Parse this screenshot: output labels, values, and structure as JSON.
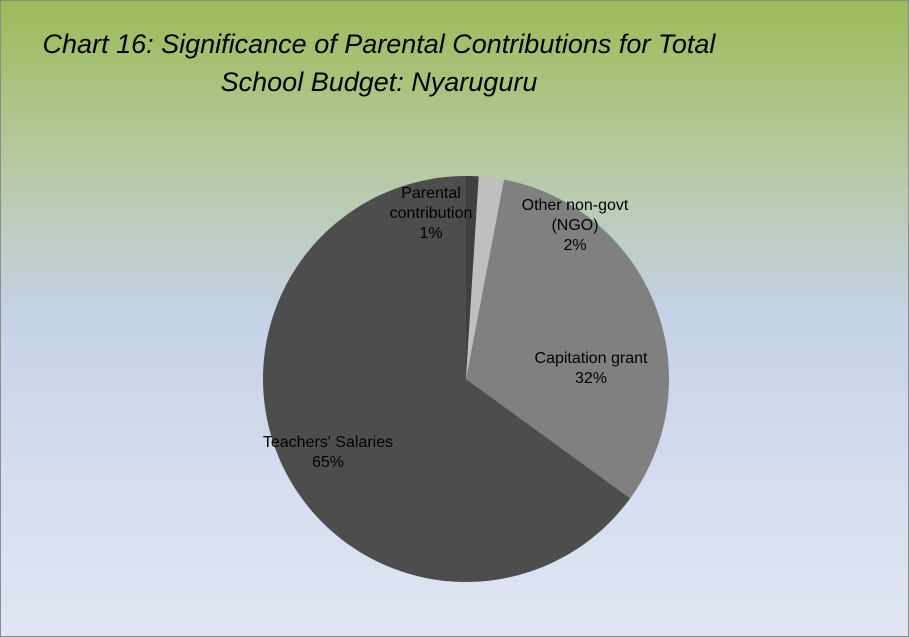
{
  "chart_data": {
    "type": "pie",
    "title": "Chart 16: Significance of Parental Contributions for Total School Budget: Nyaruguru",
    "categories": [
      "Parental contribution",
      "Other non-govt (NGO)",
      "Capitation grant",
      "Teachers' Salaries"
    ],
    "values": [
      1,
      2,
      32,
      65
    ],
    "value_labels": [
      "1%",
      "2%",
      "32%",
      "65%"
    ],
    "colors": [
      "#404040",
      "#bfbfbf",
      "#808080",
      "#4d4d4d"
    ]
  }
}
